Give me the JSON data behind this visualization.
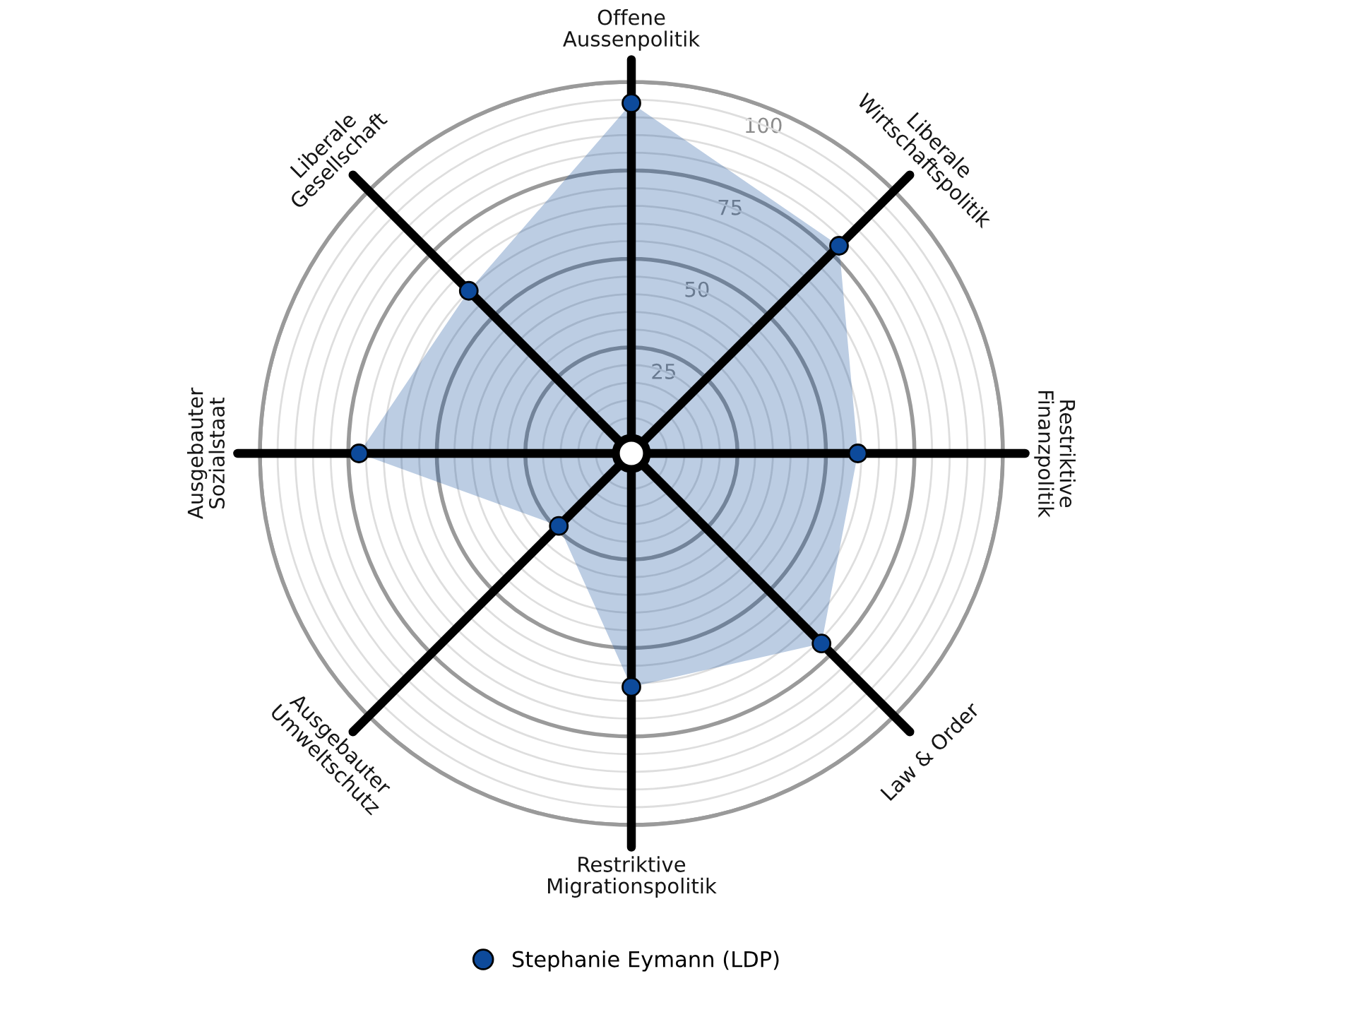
{
  "chart_data": {
    "type": "radar",
    "categories": [
      "Offene\nAussenpolitik",
      "Liberale\nWirtschaftspolitik",
      "Restriktive\nFinanzpolitik",
      "Law & Order",
      "Restriktive\nMigrationspolitik",
      "Ausgebauter\nUmweltschutz",
      "Ausgebauter\nSozialstaat",
      "Liberale\nGesellschaft"
    ],
    "series": [
      {
        "name": "Stephanie Eymann (LDP)",
        "color": "#0d4a9b",
        "values": [
          94,
          78,
          59,
          71,
          61,
          24,
          72,
          60
        ]
      }
    ],
    "ylim": [
      -5,
      100
    ],
    "yticks": [
      25,
      50,
      75,
      100
    ],
    "grid": true,
    "marker": "circle",
    "legend": "bottom"
  }
}
